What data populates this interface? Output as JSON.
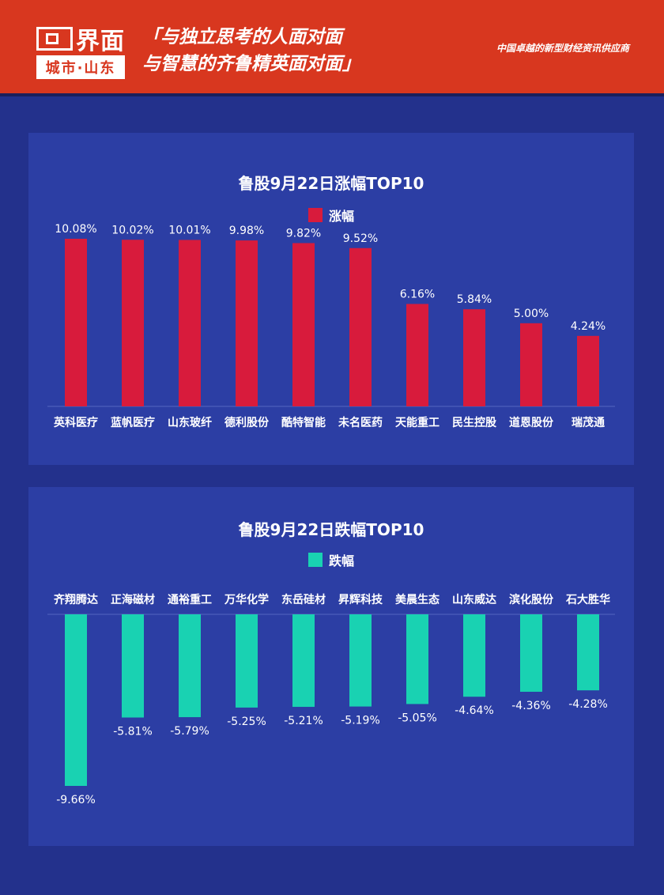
{
  "header": {
    "logo_name": "界面",
    "logo_sub": "城市·山东",
    "slogan_line1": "「与独立思考的人面对面",
    "slogan_line2": "与智慧的齐鲁精英面对面」",
    "tagline": "中国卓越的新型财经资讯供应商"
  },
  "colors": {
    "header_bg": "#d8371f",
    "page_bg": "#23318c",
    "panel_bg": "#2c3ea4",
    "gain": "#d81b3c",
    "loss": "#19d2b2"
  },
  "chart_data": [
    {
      "type": "bar",
      "title": "鲁股9月22日涨幅TOP10",
      "series": [
        {
          "name": "涨幅"
        }
      ],
      "categories": [
        "英科医疗",
        "蓝帆医疗",
        "山东玻纤",
        "德利股份",
        "酷特智能",
        "未名医药",
        "天能重工",
        "民生控股",
        "道恩股份",
        "瑞茂通"
      ],
      "values": [
        10.08,
        10.02,
        10.01,
        9.98,
        9.82,
        9.52,
        6.16,
        5.84,
        5.0,
        4.24
      ],
      "labels": [
        "10.08%",
        "10.02%",
        "10.01%",
        "9.98%",
        "9.82%",
        "9.52%",
        "6.16%",
        "5.84%",
        "5.00%",
        "4.24%"
      ],
      "ylim": [
        0,
        10.08
      ]
    },
    {
      "type": "bar",
      "title": "鲁股9月22日跌幅TOP10",
      "series": [
        {
          "name": "跌幅"
        }
      ],
      "categories": [
        "齐翔腾达",
        "正海磁材",
        "通裕重工",
        "万华化学",
        "东岳硅材",
        "昇辉科技",
        "美晨生态",
        "山东威达",
        "滨化股份",
        "石大胜华"
      ],
      "values": [
        -9.66,
        -5.81,
        -5.79,
        -5.25,
        -5.21,
        -5.19,
        -5.05,
        -4.64,
        -4.36,
        -4.28
      ],
      "labels": [
        "-9.66%",
        "-5.81%",
        "-5.79%",
        "-5.25%",
        "-5.21%",
        "-5.19%",
        "-5.05%",
        "-4.64%",
        "-4.36%",
        "-4.28%"
      ],
      "ylim": [
        -9.66,
        0
      ]
    }
  ]
}
